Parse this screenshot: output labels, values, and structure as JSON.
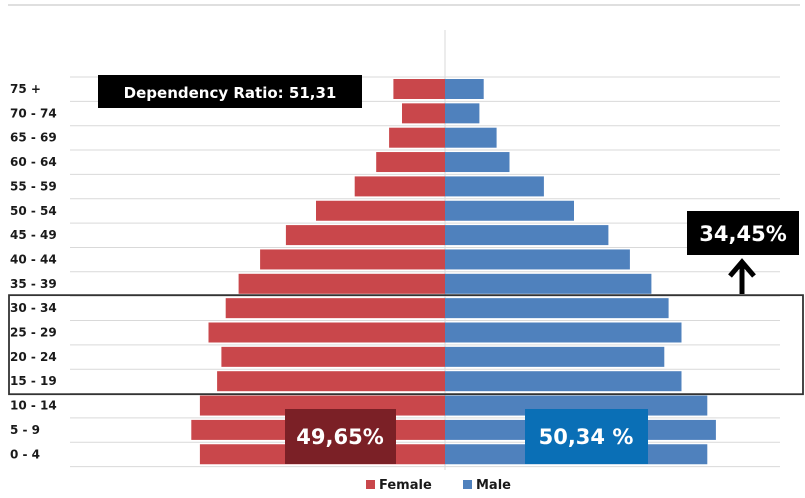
{
  "chart_data": {
    "type": "bar",
    "orientation": "horizontal-population-pyramid",
    "categories": [
      "0 - 4",
      "5 - 9",
      "10 - 14",
      "15 - 19",
      "20 - 24",
      "25 - 29",
      "30 - 34",
      "35 - 39",
      "40 - 44",
      "45 - 49",
      "50 - 54",
      "55 - 59",
      "60 - 64",
      "65 - 69",
      "70 - 74",
      "75 +"
    ],
    "series": [
      {
        "name": "Female",
        "color": "#c9474b",
        "values": [
          5.7,
          5.9,
          5.7,
          5.3,
          5.2,
          5.5,
          5.1,
          4.8,
          4.3,
          3.7,
          3.0,
          2.1,
          1.6,
          1.3,
          1.0,
          1.2
        ]
      },
      {
        "name": "Male",
        "color": "#4f81bd",
        "values": [
          6.1,
          6.3,
          6.1,
          5.5,
          5.1,
          5.5,
          5.2,
          4.8,
          4.3,
          3.8,
          3.0,
          2.3,
          1.5,
          1.2,
          0.8,
          0.9
        ]
      }
    ],
    "xlim": [
      -7,
      7
    ],
    "grid": true,
    "legend": "bottom-center",
    "annotations": {
      "dependency_ratio": "Dependency Ratio: 51,31",
      "highlight_share": "34,45%",
      "highlight_range": [
        "15 - 19",
        "30 - 34"
      ],
      "female_total": "49,65%",
      "male_total": "50,34 %"
    },
    "colors": {
      "female": "#c9474b",
      "male": "#4f81bd",
      "female_total_box": "#7b2026",
      "male_total_box": "#0a6fb6",
      "label_box": "#000000"
    }
  }
}
